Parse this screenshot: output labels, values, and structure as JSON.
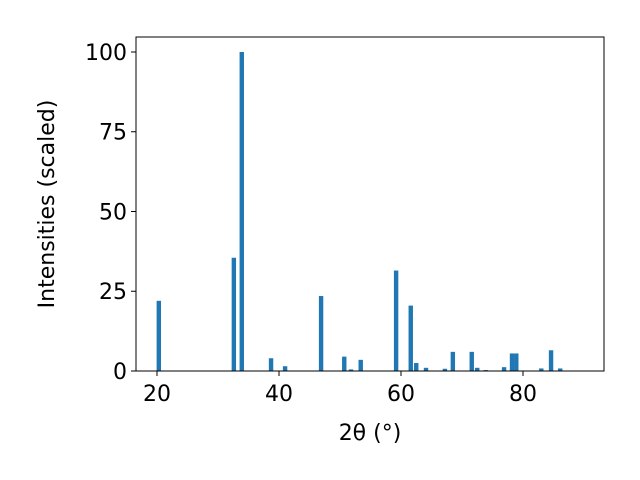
{
  "chart_data": {
    "type": "bar",
    "x": [
      20.3,
      32.6,
      33.9,
      38.7,
      41.0,
      46.9,
      50.7,
      51.8,
      53.4,
      59.2,
      61.6,
      62.5,
      64.1,
      67.2,
      68.5,
      71.6,
      72.5,
      73.9,
      76.9,
      78.2,
      78.9,
      83.0,
      84.6,
      86.1
    ],
    "values": [
      22,
      35.5,
      100,
      4,
      1.5,
      23.5,
      4.5,
      0.5,
      3.5,
      31.5,
      20.5,
      2.5,
      1,
      0.7,
      6,
      6,
      1,
      0.3,
      1.2,
      5.5,
      5.5,
      0.8,
      6.5,
      0.8
    ],
    "color": "#1f77b4",
    "xlabel": "2θ (°)",
    "ylabel": "Intensities (scaled)",
    "xlim": [
      16.56,
      93.28
    ],
    "ylim": [
      0,
      104.7
    ],
    "xticks": [
      20,
      40,
      60,
      80
    ],
    "yticks": [
      0,
      25,
      50,
      75,
      100
    ]
  }
}
